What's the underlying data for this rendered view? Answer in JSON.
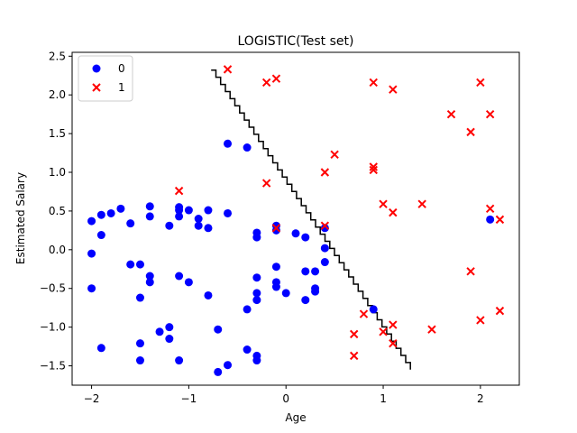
{
  "chart_data": {
    "type": "scatter",
    "title": "LOGISTIC(Test set)",
    "xlabel": "Age",
    "ylabel": "Estimated Salary",
    "xlim": [
      -2.2,
      2.4
    ],
    "ylim": [
      -1.75,
      2.55
    ],
    "x_ticks": [
      -2,
      -1,
      0,
      1,
      2
    ],
    "y_ticks": [
      -1.5,
      -1.0,
      -0.5,
      0.0,
      0.5,
      1.0,
      1.5,
      2.0,
      2.5
    ],
    "x_tick_labels": [
      "−2",
      "−1",
      "0",
      "1",
      "2"
    ],
    "y_tick_labels": [
      "−1.5",
      "−1.0",
      "−0.5",
      "0.0",
      "0.5",
      "1.0",
      "1.5",
      "2.0",
      "2.5"
    ],
    "grid": false,
    "legend_position": "top-left",
    "series": [
      {
        "name": "0",
        "marker": "circle",
        "color": "#0000ff",
        "points": [
          [
            -2.0,
            0.37
          ],
          [
            -2.0,
            -0.05
          ],
          [
            -2.0,
            -0.5
          ],
          [
            -1.9,
            0.45
          ],
          [
            -1.9,
            0.19
          ],
          [
            -1.9,
            -1.27
          ],
          [
            -1.8,
            0.47
          ],
          [
            -1.7,
            0.53
          ],
          [
            -1.6,
            0.34
          ],
          [
            -1.6,
            -0.19
          ],
          [
            -1.5,
            -0.19
          ],
          [
            -1.5,
            -0.62
          ],
          [
            -1.5,
            -1.21
          ],
          [
            -1.5,
            -1.43
          ],
          [
            -1.4,
            0.56
          ],
          [
            -1.4,
            0.43
          ],
          [
            -1.4,
            -0.34
          ],
          [
            -1.4,
            -0.42
          ],
          [
            -1.3,
            -1.06
          ],
          [
            -1.2,
            0.31
          ],
          [
            -1.2,
            -1.0
          ],
          [
            -1.2,
            -1.15
          ],
          [
            -1.1,
            0.55
          ],
          [
            -1.1,
            0.51
          ],
          [
            -1.1,
            0.43
          ],
          [
            -1.1,
            -0.34
          ],
          [
            -1.1,
            -1.43
          ],
          [
            -1.0,
            0.51
          ],
          [
            -1.0,
            -0.42
          ],
          [
            -0.9,
            0.4
          ],
          [
            -0.9,
            0.31
          ],
          [
            -0.8,
            0.51
          ],
          [
            -0.8,
            0.28
          ],
          [
            -0.8,
            -0.59
          ],
          [
            -0.7,
            -1.03
          ],
          [
            -0.7,
            -1.58
          ],
          [
            -0.6,
            1.37
          ],
          [
            -0.6,
            0.47
          ],
          [
            -0.6,
            -1.49
          ],
          [
            -0.4,
            1.32
          ],
          [
            -0.4,
            -0.77
          ],
          [
            -0.4,
            -1.29
          ],
          [
            -0.3,
            0.22
          ],
          [
            -0.3,
            0.16
          ],
          [
            -0.3,
            -0.36
          ],
          [
            -0.3,
            -0.56
          ],
          [
            -0.3,
            -0.65
          ],
          [
            -0.3,
            -1.37
          ],
          [
            -0.3,
            -1.43
          ],
          [
            -0.1,
            0.31
          ],
          [
            -0.1,
            0.25
          ],
          [
            -0.1,
            -0.22
          ],
          [
            -0.1,
            -0.42
          ],
          [
            -0.1,
            -0.48
          ],
          [
            0.0,
            -0.56
          ],
          [
            0.1,
            0.21
          ],
          [
            0.2,
            0.16
          ],
          [
            0.2,
            -0.28
          ],
          [
            0.2,
            -0.65
          ],
          [
            0.3,
            -0.28
          ],
          [
            0.3,
            -0.5
          ],
          [
            0.3,
            -0.54
          ],
          [
            0.4,
            0.28
          ],
          [
            0.4,
            0.02
          ],
          [
            0.4,
            -0.16
          ],
          [
            0.9,
            -0.77
          ],
          [
            2.1,
            0.39
          ]
        ]
      },
      {
        "name": "1",
        "marker": "x",
        "color": "#ff0000",
        "points": [
          [
            -0.6,
            2.33
          ],
          [
            -0.2,
            2.16
          ],
          [
            -0.1,
            2.21
          ],
          [
            -1.1,
            0.76
          ],
          [
            -0.2,
            0.86
          ],
          [
            -0.1,
            0.28
          ],
          [
            0.4,
            0.31
          ],
          [
            0.4,
            1.0
          ],
          [
            0.5,
            1.23
          ],
          [
            0.9,
            2.16
          ],
          [
            1.1,
            2.07
          ],
          [
            0.9,
            1.07
          ],
          [
            0.9,
            1.03
          ],
          [
            1.0,
            0.59
          ],
          [
            1.1,
            0.48
          ],
          [
            1.4,
            0.59
          ],
          [
            1.7,
            1.75
          ],
          [
            1.9,
            1.52
          ],
          [
            2.0,
            2.16
          ],
          [
            2.1,
            1.75
          ],
          [
            2.1,
            0.53
          ],
          [
            2.2,
            0.39
          ],
          [
            1.9,
            -0.28
          ],
          [
            2.0,
            -0.91
          ],
          [
            2.2,
            -0.79
          ],
          [
            1.5,
            -1.03
          ],
          [
            1.1,
            -0.97
          ],
          [
            1.0,
            -1.06
          ],
          [
            1.1,
            -1.21
          ],
          [
            0.8,
            -0.83
          ],
          [
            0.7,
            -1.09
          ],
          [
            0.7,
            -1.37
          ]
        ]
      }
    ],
    "decision_boundary": {
      "color": "#000000",
      "x_start": -0.77,
      "x_end": 1.28,
      "y_start": 2.32,
      "y_end": -1.55
    }
  }
}
